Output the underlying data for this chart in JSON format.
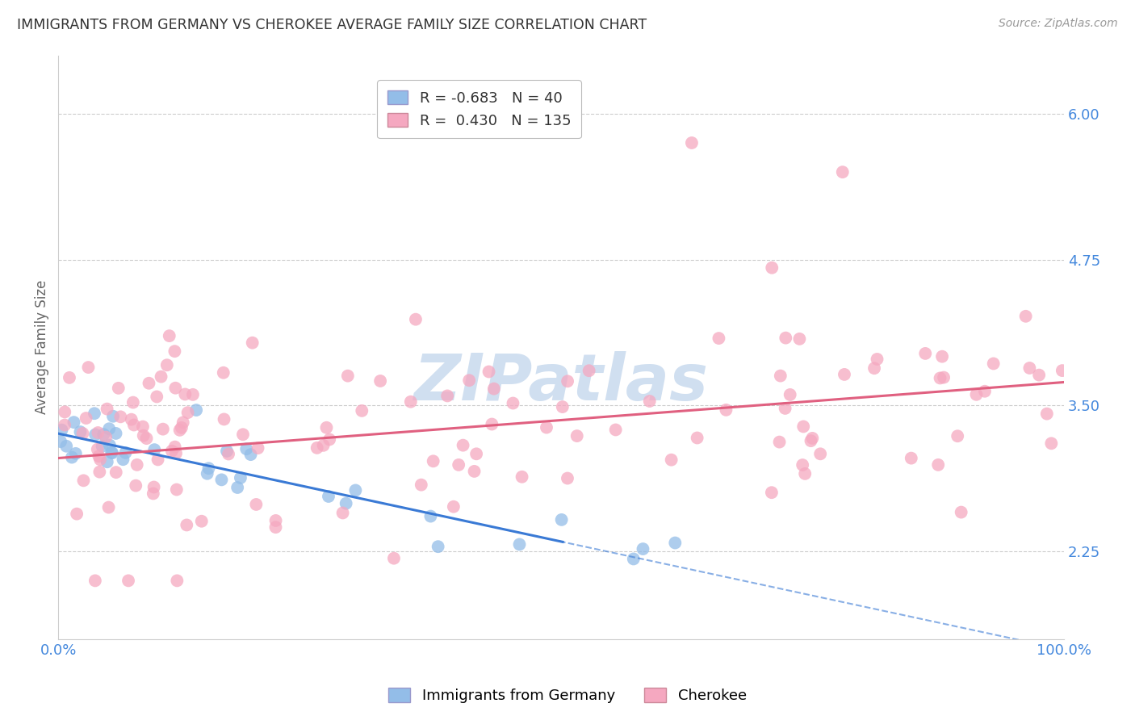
{
  "title": "IMMIGRANTS FROM GERMANY VS CHEROKEE AVERAGE FAMILY SIZE CORRELATION CHART",
  "source": "Source: ZipAtlas.com",
  "ylabel": "Average Family Size",
  "xlim": [
    0.0,
    1.0
  ],
  "ylim": [
    1.5,
    6.5
  ],
  "yticks": [
    2.25,
    3.5,
    4.75,
    6.0
  ],
  "xticks": [
    0.0,
    0.25,
    0.5,
    0.75,
    1.0
  ],
  "xticklabels": [
    "0.0%",
    "",
    "",
    "",
    "100.0%"
  ],
  "yticklabels": [
    "2.25",
    "3.50",
    "4.75",
    "6.00"
  ],
  "blue_R": "-0.683",
  "blue_N": "40",
  "pink_R": "0.430",
  "pink_N": "135",
  "blue_scatter_color": "#93bde8",
  "pink_scatter_color": "#f5a8c0",
  "blue_line_color": "#3a7ad5",
  "pink_line_color": "#e06080",
  "blue_slope": -1.85,
  "blue_intercept": 3.26,
  "pink_slope": 0.65,
  "pink_intercept": 3.05,
  "background_color": "#ffffff",
  "grid_color": "#cccccc",
  "title_color": "#333333",
  "axis_tick_color": "#4488dd",
  "watermark": "ZIPatlas",
  "watermark_color": "#d0dff0",
  "source_color": "#999999"
}
